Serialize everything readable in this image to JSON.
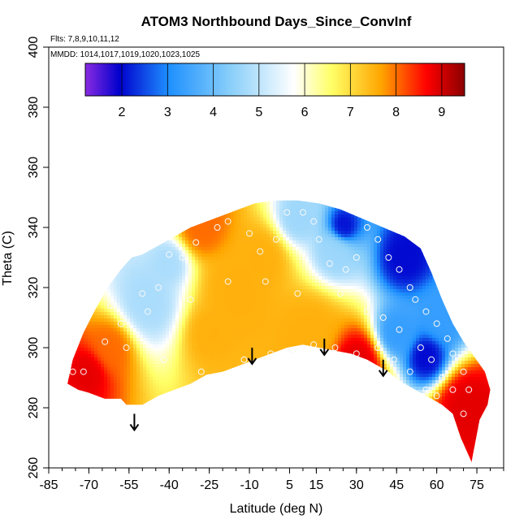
{
  "chart_data": {
    "type": "heatmap",
    "title": "ATOM3 Northbound Days_Since_ConvInf",
    "subtitle_flights": "Flts: 7,8,9,10,11,12",
    "subtitle_dates": "MMDD: 1014,1017,1019,1020,1023,1025",
    "xlabel": "Latitude (deg N)",
    "ylabel": "Theta (C)",
    "xlim": [
      -85,
      85
    ],
    "ylim": [
      260,
      400
    ],
    "x_ticks": [
      "-85",
      "-70",
      "-55",
      "-40",
      "-25",
      "-10",
      "5",
      "15",
      "30",
      "45",
      "60",
      "75"
    ],
    "y_ticks": [
      "260",
      "280",
      "300",
      "320",
      "340",
      "360",
      "380",
      "400"
    ],
    "colorbar": {
      "range": [
        1.2,
        9.5
      ],
      "tick_labels": [
        "2",
        "3",
        "4",
        "5",
        "6",
        "7",
        "8",
        "9"
      ],
      "colors": [
        "#8a2be2",
        "#0000cd",
        "#1e90ff",
        "#87cefa",
        "#ffffff",
        "#ffff66",
        "#ffa500",
        "#ff0000",
        "#8b0000"
      ]
    },
    "regions": [
      {
        "name": "south-warm-envelope",
        "value": 7.8
      },
      {
        "name": "southern-midlat-light-blue",
        "value": 4.6
      },
      {
        "name": "tropical-orange-core",
        "value": 7.3
      },
      {
        "name": "northern-tropics-light-blue",
        "value": 4.5
      },
      {
        "name": "northern-deep-blue",
        "value": 2.3
      },
      {
        "name": "high-lat-blue",
        "value": 3.5
      },
      {
        "name": "near-ground-red",
        "value": 8.7
      }
    ],
    "arrows_latitude": [
      -53,
      -9,
      18,
      40
    ]
  }
}
